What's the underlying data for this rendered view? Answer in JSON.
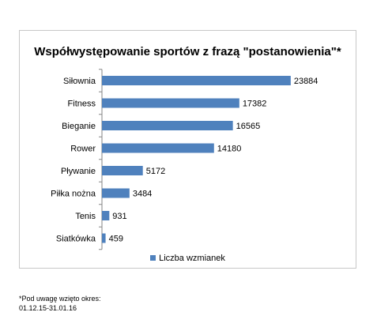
{
  "chart_data": {
    "type": "bar",
    "orientation": "horizontal",
    "title": "Współwystępowanie sportów z frazą \"postanowienia\"*",
    "categories": [
      "Siłownia",
      "Fitness",
      "Bieganie",
      "Rower",
      "Pływanie",
      "Piłka nożna",
      "Tenis",
      "Siatkówka"
    ],
    "series": [
      {
        "name": "Liczba wzmianek",
        "values": [
          23884,
          17382,
          16565,
          14180,
          5172,
          3484,
          931,
          459
        ]
      }
    ],
    "xlim": [
      0,
      30000
    ],
    "grid": false,
    "legend": "bottom",
    "bar_color": "#4f81bd"
  },
  "footnote": {
    "line1": "*Pod uwagę wzięto okres:",
    "line2": "01.12.15-31.01.16"
  }
}
